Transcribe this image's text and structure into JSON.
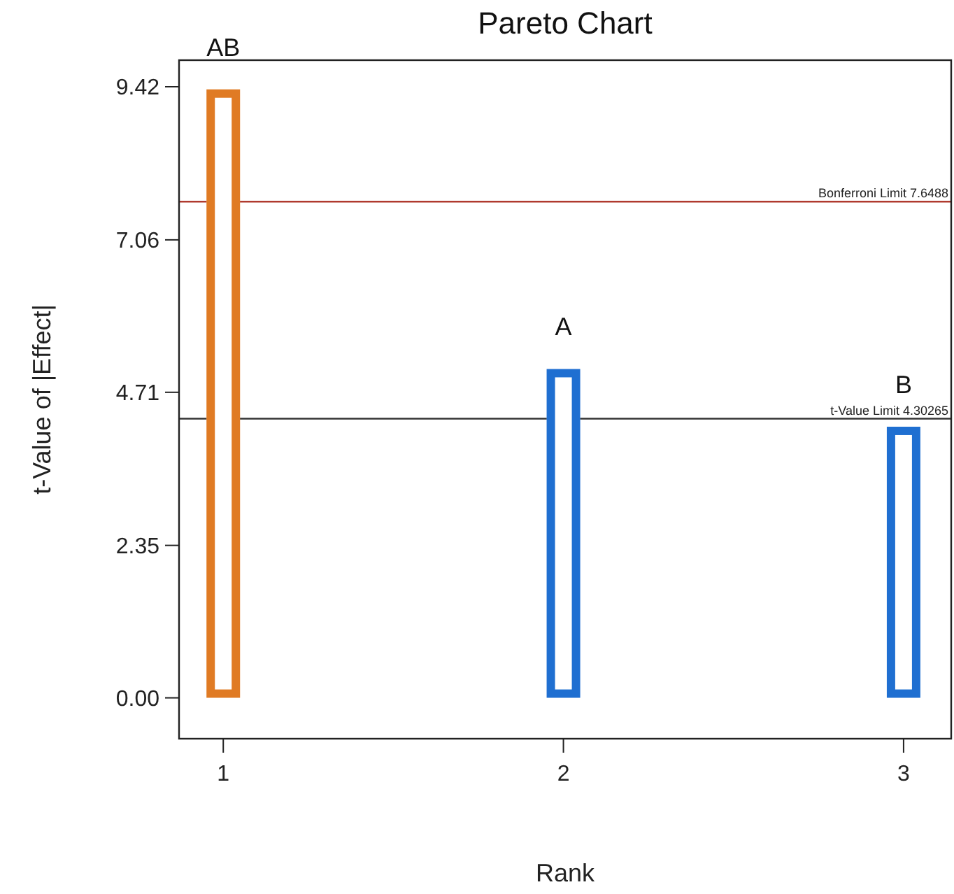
{
  "chart_data": {
    "type": "bar",
    "title": "Pareto Chart",
    "xlabel": "Rank",
    "ylabel": "t-Value of |Effect|",
    "x": [
      1,
      2,
      3
    ],
    "values": [
      9.38,
      5.07,
      4.18
    ],
    "colors": [
      "#e07b24",
      "#1f6fd1",
      "#1f6fd1"
    ],
    "xlim": [
      0.87,
      3.14
    ],
    "xticks": [
      1,
      2,
      3
    ],
    "ylim": [
      -0.63,
      9.83
    ],
    "yticks": [
      {
        "value": 0,
        "label": "0.00"
      },
      2.35,
      4.71,
      7.06,
      9.42
    ],
    "ref_lines": [
      {
        "axis": "y",
        "value": 7.6488,
        "label": "Bonferroni Limit 7.6488",
        "color": "#b03a2e"
      },
      {
        "axis": "y",
        "value": 4.30265,
        "label": "t-Value Limit 4.30265",
        "color": "#333333"
      }
    ],
    "annotations": [
      {
        "text": "AB",
        "x": 1,
        "y": 9.38
      },
      {
        "text": "A",
        "x": 2,
        "y": 5.07
      },
      {
        "text": "B",
        "x": 3,
        "y": 4.18
      }
    ],
    "grid": false
  }
}
